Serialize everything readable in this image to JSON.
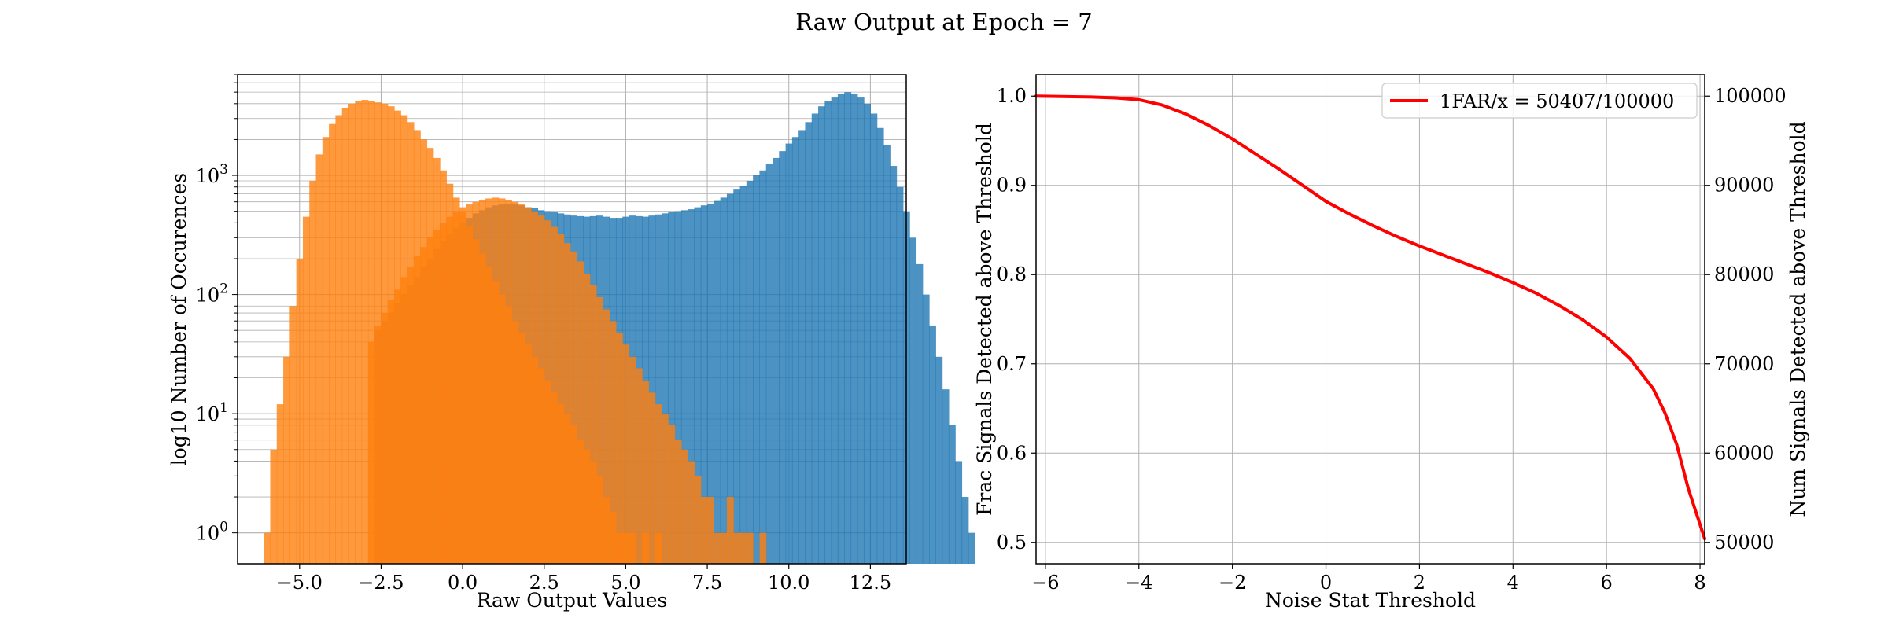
{
  "figure": {
    "suptitle": "Raw Output at Epoch = 7"
  },
  "colors": {
    "noise_hist": "#ff7f0e",
    "signal_hist": "#1f77b4",
    "curve": "#ff0000",
    "grid": "#b0b0b0"
  },
  "chart_data": [
    {
      "type": "histogram",
      "xlabel": "Raw Output Values",
      "ylabel": "log10 Number of Occurences",
      "yscale": "log",
      "xlim": [
        -6.9,
        13.6
      ],
      "ylim": [
        0.55,
        7000
      ],
      "xticks": [
        -5.0,
        -2.5,
        0.0,
        2.5,
        5.0,
        7.5,
        10.0,
        12.5
      ],
      "xtick_labels": [
        "−5.0",
        "−2.5",
        "0.0",
        "2.5",
        "5.0",
        "7.5",
        "10.0",
        "12.5"
      ],
      "ytick_labels": [
        {
          "base": "10",
          "exp": "0",
          "value": 1
        },
        {
          "base": "10",
          "exp": "1",
          "value": 10
        },
        {
          "base": "10",
          "exp": "2",
          "value": 100
        },
        {
          "base": "10",
          "exp": "3",
          "value": 1000
        }
      ],
      "grid": true,
      "alpha": 0.8,
      "series": [
        {
          "color": "#1f77b4",
          "x_start": -2.7,
          "bin_width": 0.2,
          "counts": [
            50,
            60,
            70,
            85,
            100,
            120,
            140,
            170,
            200,
            240,
            280,
            320,
            360,
            400,
            440,
            480,
            510,
            540,
            560,
            570,
            580,
            575,
            560,
            540,
            530,
            510,
            500,
            490,
            480,
            470,
            460,
            455,
            450,
            455,
            460,
            450,
            440,
            440,
            450,
            460,
            455,
            450,
            460,
            470,
            480,
            490,
            500,
            510,
            520,
            540,
            560,
            580,
            610,
            650,
            700,
            760,
            820,
            900,
            1000,
            1100,
            1250,
            1400,
            1600,
            1850,
            2100,
            2400,
            2800,
            3300,
            3800,
            4200,
            4500,
            4800,
            5000,
            4800,
            4500,
            4000,
            3300,
            2500,
            1800,
            1200,
            800,
            500,
            300,
            180,
            100,
            55,
            30,
            16,
            8,
            4,
            2,
            1
          ]
        },
        {
          "color": "#ff7f0e",
          "x_start": -6.1,
          "bin_width": 0.2,
          "counts": [
            1,
            5,
            12,
            30,
            80,
            200,
            450,
            900,
            1500,
            2100,
            2700,
            3200,
            3700,
            4000,
            4200,
            4300,
            4200,
            4100,
            4000,
            3800,
            3500,
            3200,
            2800,
            2400,
            2000,
            1700,
            1400,
            1100,
            850,
            650,
            500,
            380,
            290,
            220,
            170,
            130,
            100,
            80,
            60,
            48,
            38,
            30,
            24,
            19,
            15,
            12,
            10,
            8,
            6,
            5,
            4,
            3,
            2,
            1.5,
            1,
            1,
            1,
            0,
            1,
            0,
            1
          ]
        },
        {
          "color": "#ff7f0e",
          "x_start": -2.9,
          "bin_width": 0.2,
          "counts": [
            40,
            55,
            70,
            90,
            110,
            140,
            170,
            210,
            250,
            300,
            350,
            400,
            450,
            500,
            540,
            570,
            600,
            620,
            640,
            650,
            640,
            620,
            600,
            570,
            540,
            500,
            460,
            420,
            370,
            320,
            270,
            230,
            190,
            150,
            120,
            95,
            75,
            60,
            48,
            38,
            30,
            24,
            19,
            15,
            12,
            10,
            8,
            6,
            5,
            4,
            3,
            2,
            2,
            1,
            1,
            2,
            1,
            1,
            1,
            0,
            1
          ]
        }
      ]
    },
    {
      "type": "line",
      "xlabel": "Noise Stat Threshold",
      "ylabel": "Frac Signals Detected above Threshold",
      "ylabel_right": "Num Signals Detected above Threshold",
      "xlim": [
        -6.2,
        8.1
      ],
      "ylim": [
        0.476,
        1.024
      ],
      "ylim_right": [
        47600,
        102400
      ],
      "xticks": [
        -6,
        -4,
        -2,
        0,
        2,
        4,
        6,
        8
      ],
      "xtick_labels": [
        "−6",
        "−4",
        "−2",
        "0",
        "2",
        "4",
        "6",
        "8"
      ],
      "yticks": [
        0.5,
        0.6,
        0.7,
        0.8,
        0.9,
        1.0
      ],
      "ytick_labels": [
        "0.5",
        "0.6",
        "0.7",
        "0.8",
        "0.9",
        "1.0"
      ],
      "yticks_right": [
        50000,
        60000,
        70000,
        80000,
        90000,
        100000
      ],
      "ytick_labels_right": [
        "50000",
        "60000",
        "70000",
        "80000",
        "90000",
        "100000"
      ],
      "grid": true,
      "legend_position": "top-right",
      "series": [
        {
          "name": "1FAR/x = 50407/100000",
          "color": "#ff0000",
          "x": [
            -6.2,
            -5,
            -4.5,
            -4,
            -3.5,
            -3,
            -2.5,
            -2,
            -1.5,
            -1,
            -0.5,
            0,
            0.5,
            1,
            1.5,
            2,
            2.5,
            3,
            3.5,
            4,
            4.5,
            5,
            5.5,
            6,
            6.5,
            7,
            7.25,
            7.5,
            7.75,
            8.1
          ],
          "y": [
            1.0,
            0.999,
            0.998,
            0.996,
            0.99,
            0.98,
            0.967,
            0.952,
            0.935,
            0.918,
            0.9,
            0.882,
            0.868,
            0.855,
            0.843,
            0.832,
            0.822,
            0.812,
            0.802,
            0.791,
            0.779,
            0.765,
            0.749,
            0.73,
            0.706,
            0.672,
            0.645,
            0.61,
            0.56,
            0.504
          ]
        }
      ]
    }
  ]
}
